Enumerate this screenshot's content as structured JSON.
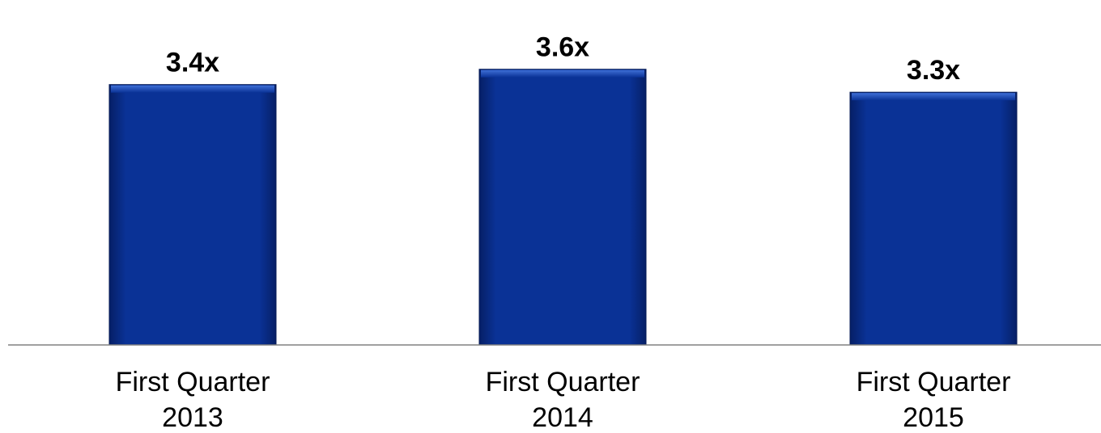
{
  "chart_data": {
    "type": "bar",
    "categories": [
      [
        "First Quarter",
        "2013"
      ],
      [
        "First Quarter",
        "2014"
      ],
      [
        "First Quarter",
        "2015"
      ]
    ],
    "values": [
      3.4,
      3.6,
      3.3
    ],
    "data_labels": [
      "3.4x",
      "3.6x",
      "3.3x"
    ],
    "title": "",
    "xlabel": "",
    "ylabel": "",
    "grid": false,
    "legend": "none",
    "bar_color": "#0a3296",
    "axis_color": "#808080"
  }
}
